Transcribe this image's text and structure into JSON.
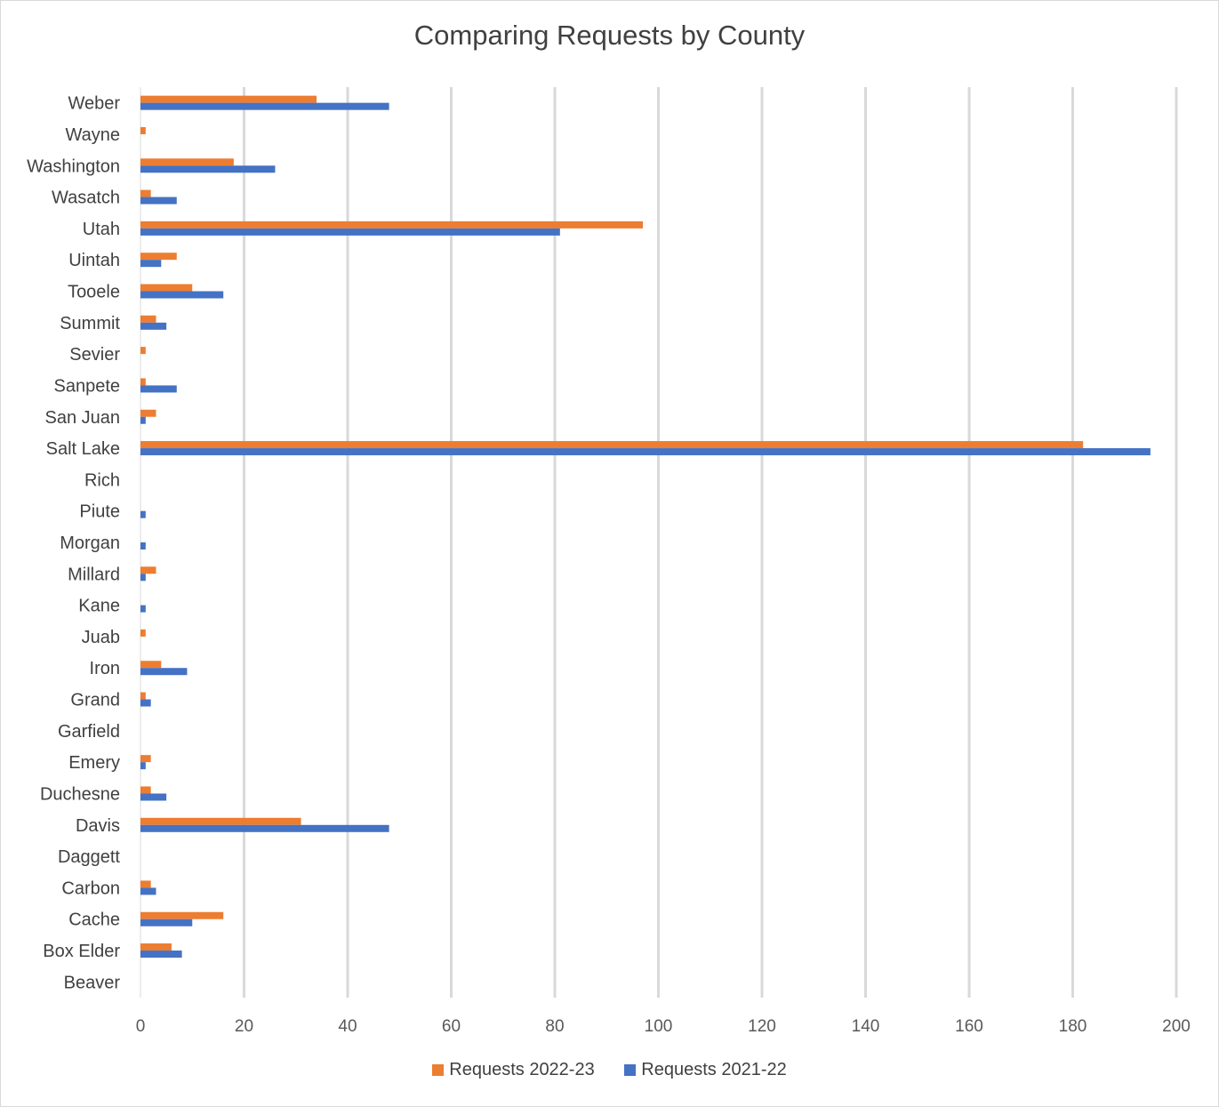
{
  "chart_data": {
    "type": "bar",
    "orientation": "horizontal",
    "title": "Comparing Requests by County",
    "xlabel": "",
    "ylabel": "",
    "xlim": [
      0,
      200
    ],
    "xticks": [
      0,
      20,
      40,
      60,
      80,
      100,
      120,
      140,
      160,
      180,
      200
    ],
    "grid": "vertical",
    "legend_position": "bottom",
    "categories": [
      "Beaver",
      "Box Elder",
      "Cache",
      "Carbon",
      "Daggett",
      "Davis",
      "Duchesne",
      "Emery",
      "Garfield",
      "Grand",
      "Iron",
      "Juab",
      "Kane",
      "Millard",
      "Morgan",
      "Piute",
      "Rich",
      "Salt Lake",
      "San Juan",
      "Sanpete",
      "Sevier",
      "Summit",
      "Tooele",
      "Uintah",
      "Utah",
      "Wasatch",
      "Washington",
      "Wayne",
      "Weber"
    ],
    "series": [
      {
        "name": "Requests 2022-23",
        "color": "#ED7D31",
        "values": [
          0,
          6,
          16,
          2,
          0,
          31,
          2,
          2,
          0,
          1,
          4,
          1,
          0,
          3,
          0,
          0,
          0,
          182,
          3,
          1,
          1,
          3,
          10,
          7,
          97,
          2,
          18,
          1,
          34
        ]
      },
      {
        "name": "Requests 2021-22",
        "color": "#4472C4",
        "values": [
          0,
          8,
          10,
          3,
          0,
          48,
          5,
          1,
          0,
          2,
          9,
          0,
          1,
          1,
          1,
          1,
          0,
          195,
          1,
          7,
          0,
          5,
          16,
          4,
          81,
          7,
          26,
          0,
          48
        ]
      }
    ]
  }
}
